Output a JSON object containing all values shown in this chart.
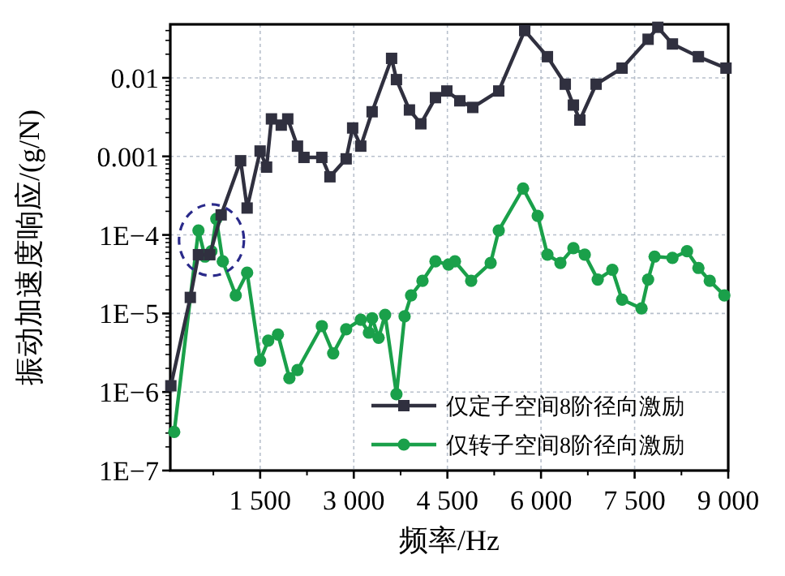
{
  "chart_data": {
    "type": "line",
    "xlabel": "频率/Hz",
    "ylabel": "振动加速度响应/(g/N)",
    "log": "y",
    "xlim": [
      60,
      9000
    ],
    "ylim": [
      1e-07,
      0.048
    ],
    "xticks": [
      {
        "value": 1500,
        "label": "1 500"
      },
      {
        "value": 3000,
        "label": "3 000"
      },
      {
        "value": 4500,
        "label": "4 500"
      },
      {
        "value": 6000,
        "label": "6 000"
      },
      {
        "value": 7500,
        "label": "7 500"
      },
      {
        "value": 9000,
        "label": "9 000"
      }
    ],
    "yticks": [
      {
        "value": 1e-07,
        "label": "1E−7"
      },
      {
        "value": 1e-06,
        "label": "1E−6"
      },
      {
        "value": 1e-05,
        "label": "1E−5"
      },
      {
        "value": 0.0001,
        "label": "1E−4"
      },
      0.001,
      0.01
    ],
    "grid": true,
    "legend": "bottom right",
    "line_style": "solid",
    "series": [
      {
        "name": "仅定子空间8阶径向激励",
        "color": "#30303f",
        "marker": "square",
        "x": [
          69,
          381,
          511,
          693,
          875,
          1187,
          1291,
          1499,
          1603,
          1681,
          1838,
          1942,
          2098,
          2202,
          2488,
          2618,
          2878,
          2982,
          3112,
          3294,
          3606,
          3684,
          3892,
          4075,
          4309,
          4491,
          4699,
          4907,
          5323,
          5739,
          6103,
          6389,
          6519,
          6623,
          6883,
          7299,
          7716,
          7872,
          8106,
          8522,
          8964
        ],
        "values": [
          1.2e-06,
          1.6e-05,
          5.6e-05,
          5.6e-05,
          0.00018,
          0.00088,
          0.00022,
          0.00117,
          0.00073,
          0.003,
          0.0025,
          0.003,
          0.00135,
          0.00097,
          0.00097,
          0.00055,
          0.00093,
          0.0023,
          0.00135,
          0.0037,
          0.0177,
          0.0095,
          0.0039,
          0.0026,
          0.0056,
          0.0068,
          0.0051,
          0.0042,
          0.0068,
          0.04,
          0.0186,
          0.0083,
          0.0045,
          0.0029,
          0.0083,
          0.0133,
          0.031,
          0.044,
          0.027,
          0.0186,
          0.0133
        ]
      },
      {
        "name": "仅转子空间8阶径向激励",
        "color": "#1aa04a",
        "marker": "circle",
        "x": [
          123,
          511,
          615,
          719,
          797,
          901,
          1109,
          1291,
          1499,
          1629,
          1785,
          1968,
          2098,
          2488,
          2670,
          2878,
          3112,
          3242,
          3294,
          3398,
          3502,
          3684,
          3814,
          3918,
          4101,
          4309,
          4517,
          4621,
          4881,
          5193,
          5323,
          5713,
          5947,
          6103,
          6311,
          6519,
          6701,
          6909,
          7143,
          7299,
          7611,
          7716,
          7820,
          8106,
          8340,
          8522,
          8704,
          8938
        ],
        "values": [
          3.1e-07,
          0.000114,
          5.3e-05,
          6.2e-05,
          0.00016,
          4.6e-05,
          1.7e-05,
          3.3e-05,
          2.5e-06,
          4.5e-06,
          5.4e-06,
          1.5e-06,
          1.9e-06,
          6.9e-06,
          3.1e-06,
          6.3e-06,
          8.3e-06,
          5.7e-06,
          8.7e-06,
          4.9e-06,
          9.6e-06,
          9.4e-07,
          9.2e-06,
          1.7e-05,
          2.6e-05,
          4.6e-05,
          4.2e-05,
          4.6e-05,
          2.6e-05,
          4.4e-05,
          0.000114,
          0.00039,
          0.000175,
          5.6e-05,
          4.4e-05,
          6.8e-05,
          5.6e-05,
          2.7e-05,
          3.6e-05,
          1.5e-05,
          1.16e-05,
          2.7e-05,
          5.3e-05,
          5.1e-05,
          6.2e-05,
          3.8e-05,
          2.6e-05,
          1.7e-05
        ]
      }
    ]
  }
}
